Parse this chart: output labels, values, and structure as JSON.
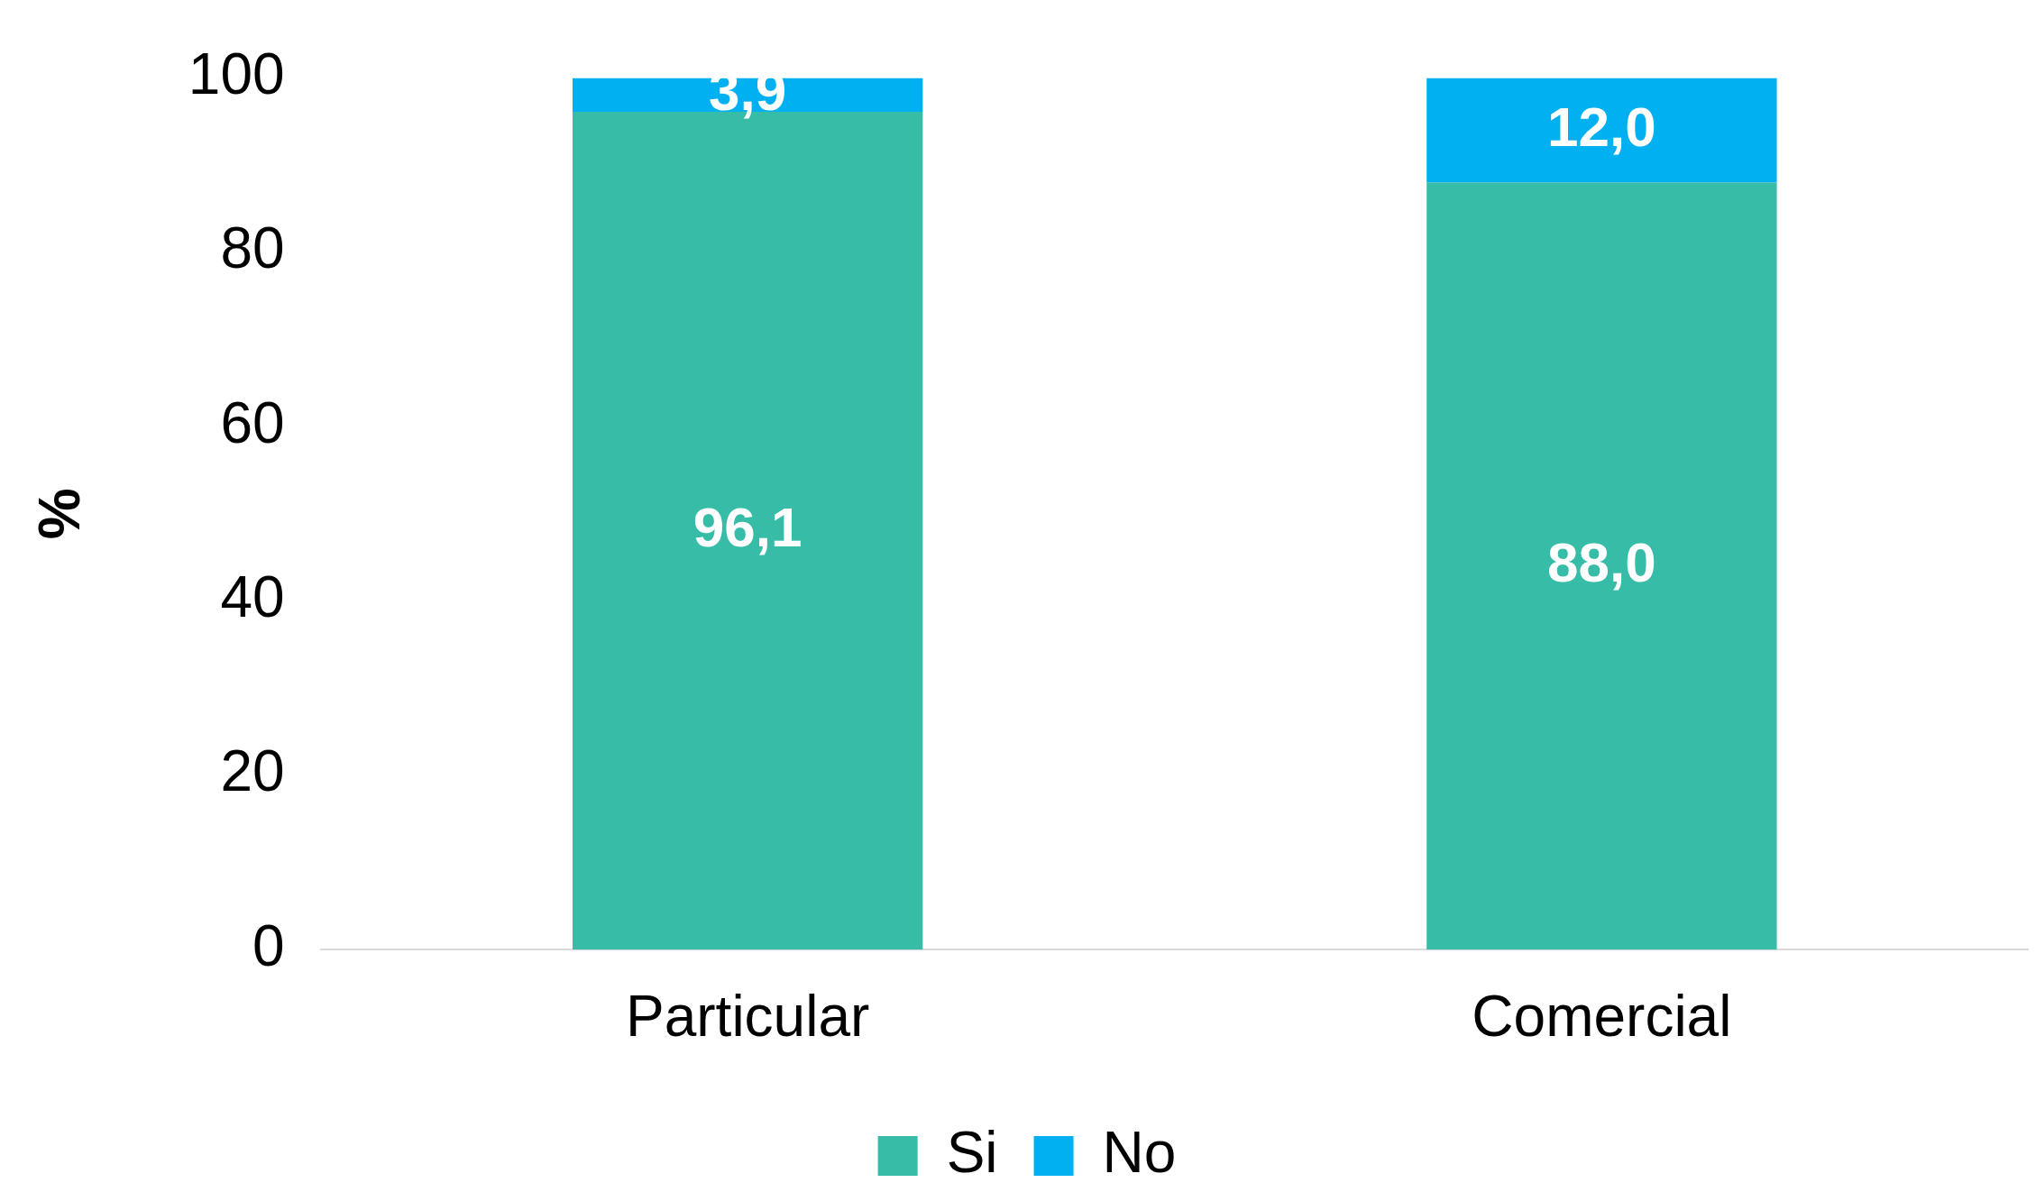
{
  "chart_data": {
    "type": "bar",
    "ylabel": "%",
    "categories": [
      "Particular",
      "Comercial"
    ],
    "stacked": true,
    "series": [
      {
        "name": "Si",
        "color": "#37bca7",
        "values": [
          96.1,
          88.0
        ],
        "value_labels": [
          "96,1",
          "88,0"
        ]
      },
      {
        "name": "No",
        "color": "#00b0f0",
        "values": [
          3.9,
          12.0
        ],
        "value_labels": [
          "3,9",
          "12,0"
        ]
      }
    ],
    "ylim": [
      0,
      100
    ],
    "yticks": [
      0,
      20,
      40,
      60,
      80,
      100
    ],
    "grid": false,
    "legend": "bottom"
  }
}
